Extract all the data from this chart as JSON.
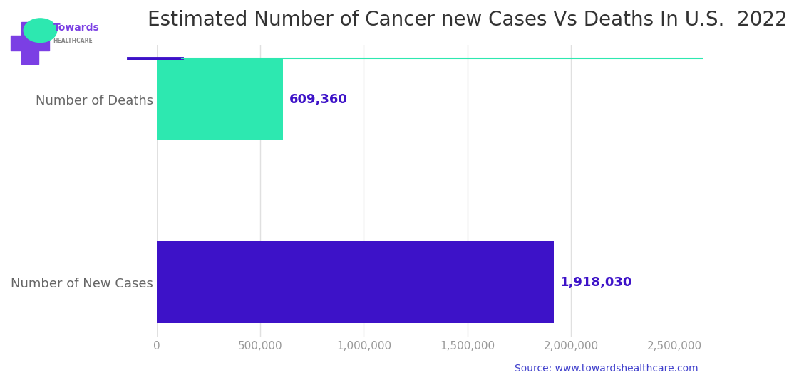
{
  "title": "Estimated Number of Cancer new Cases Vs Deaths In U.S.  2022",
  "categories": [
    "Number of New Cases",
    "Number of Deaths"
  ],
  "values": [
    1918030,
    609360
  ],
  "bar_colors": [
    "#3d12c8",
    "#2de8b0"
  ],
  "value_labels": [
    "1,918,030",
    "609,360"
  ],
  "xlim": [
    0,
    2500000
  ],
  "xticks": [
    0,
    500000,
    1000000,
    1500000,
    2000000,
    2500000
  ],
  "xtick_labels": [
    "0",
    "500,000",
    "1,000,000",
    "1,500,000",
    "2,000,000",
    "2,500,000"
  ],
  "bar_height": 0.45,
  "title_fontsize": 20,
  "label_fontsize": 13,
  "value_fontsize": 13,
  "tick_fontsize": 11,
  "source_text": "Source: www.towardshealthcare.com",
  "source_color": "#4040cc",
  "source_fontsize": 10,
  "title_color": "#333333",
  "label_color": "#666666",
  "value_color": "#3d12c8",
  "tick_color": "#999999",
  "grid_color": "#e0e0e0",
  "bg_color": "#ffffff",
  "separator_line_color1": "#3d12c8",
  "separator_line_color2": "#2de8b0",
  "logo_cross_color": "#7b3fe4",
  "logo_leaf_color": "#2de8b0"
}
